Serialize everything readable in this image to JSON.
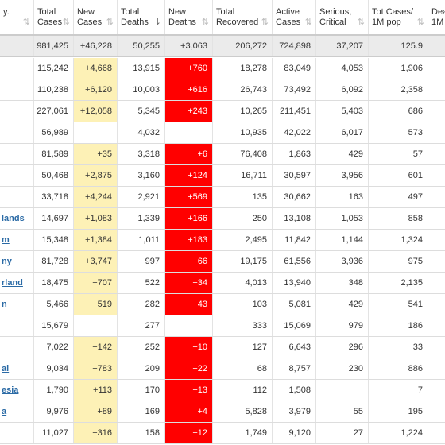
{
  "header": {
    "col0": [
      "y.",
      ""
    ],
    "col1": [
      "Total",
      "Cases"
    ],
    "col2": [
      "New",
      "Cases"
    ],
    "col3": [
      "Total",
      "Deaths"
    ],
    "col4": [
      "New",
      "Deaths"
    ],
    "col5": [
      "Total",
      "Recovered"
    ],
    "col6": [
      "Active",
      "Cases"
    ],
    "col7": [
      "Serious,",
      "Critical"
    ],
    "col8": [
      "Tot Cases/",
      "1M pop"
    ],
    "col9": [
      "Dea",
      "1M"
    ]
  },
  "total_row": [
    "",
    "981,425",
    "+46,228",
    "50,255",
    "+3,063",
    "206,272",
    "724,898",
    "37,207",
    "125.9",
    ""
  ],
  "rows": [
    {
      "country": "",
      "link": false,
      "cells": [
        "115,242",
        "+4,668",
        "13,915",
        "+760",
        "18,278",
        "83,049",
        "4,053",
        "1,906",
        ""
      ]
    },
    {
      "country": "",
      "link": false,
      "cells": [
        "110,238",
        "+6,120",
        "10,003",
        "+616",
        "26,743",
        "73,492",
        "6,092",
        "2,358",
        ""
      ]
    },
    {
      "country": "",
      "link": false,
      "cells": [
        "227,061",
        "+12,058",
        "5,345",
        "+243",
        "10,265",
        "211,451",
        "5,403",
        "686",
        ""
      ]
    },
    {
      "country": "",
      "link": false,
      "cells": [
        "56,989",
        "",
        "4,032",
        "",
        "10,935",
        "42,022",
        "6,017",
        "573",
        ""
      ]
    },
    {
      "country": "",
      "link": false,
      "cells": [
        "81,589",
        "+35",
        "3,318",
        "+6",
        "76,408",
        "1,863",
        "429",
        "57",
        ""
      ]
    },
    {
      "country": "",
      "link": false,
      "cells": [
        "50,468",
        "+2,875",
        "3,160",
        "+124",
        "16,711",
        "30,597",
        "3,956",
        "601",
        ""
      ]
    },
    {
      "country": "",
      "link": false,
      "cells": [
        "33,718",
        "+4,244",
        "2,921",
        "+569",
        "135",
        "30,662",
        "163",
        "497",
        ""
      ]
    },
    {
      "country": "lands",
      "link": true,
      "cells": [
        "14,697",
        "+1,083",
        "1,339",
        "+166",
        "250",
        "13,108",
        "1,053",
        "858",
        ""
      ]
    },
    {
      "country": "m",
      "link": true,
      "cells": [
        "15,348",
        "+1,384",
        "1,011",
        "+183",
        "2,495",
        "11,842",
        "1,144",
        "1,324",
        ""
      ]
    },
    {
      "country": "ny",
      "link": true,
      "cells": [
        "81,728",
        "+3,747",
        "997",
        "+66",
        "19,175",
        "61,556",
        "3,936",
        "975",
        ""
      ]
    },
    {
      "country": "rland",
      "link": true,
      "cells": [
        "18,475",
        "+707",
        "522",
        "+34",
        "4,013",
        "13,940",
        "348",
        "2,135",
        ""
      ]
    },
    {
      "country": "n",
      "link": true,
      "cells": [
        "5,466",
        "+519",
        "282",
        "+43",
        "103",
        "5,081",
        "429",
        "541",
        ""
      ]
    },
    {
      "country": "",
      "link": false,
      "cells": [
        "15,679",
        "",
        "277",
        "",
        "333",
        "15,069",
        "979",
        "186",
        ""
      ]
    },
    {
      "country": "",
      "link": false,
      "cells": [
        "7,022",
        "+142",
        "252",
        "+10",
        "127",
        "6,643",
        "296",
        "33",
        ""
      ]
    },
    {
      "country": "al",
      "link": true,
      "cells": [
        "9,034",
        "+783",
        "209",
        "+22",
        "68",
        "8,757",
        "230",
        "886",
        ""
      ]
    },
    {
      "country": "esia",
      "link": true,
      "cells": [
        "1,790",
        "+113",
        "170",
        "+13",
        "112",
        "1,508",
        "",
        "7",
        ""
      ]
    },
    {
      "country": "a",
      "link": true,
      "cells": [
        "9,976",
        "+89",
        "169",
        "+4",
        "5,828",
        "3,979",
        "55",
        "195",
        ""
      ]
    },
    {
      "country": "",
      "link": false,
      "cells": [
        "11,027",
        "+316",
        "158",
        "+12",
        "1,749",
        "9,120",
        "27",
        "1,224",
        ""
      ]
    }
  ],
  "colors": {
    "new_cases_bg": "#fdf1b6",
    "new_deaths_bg": "#ff0000",
    "link": "#2a6aa5"
  }
}
